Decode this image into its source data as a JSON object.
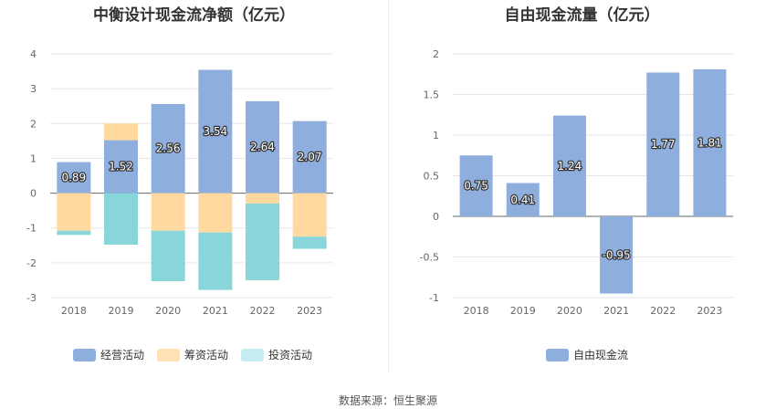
{
  "chart_data": [
    {
      "type": "bar",
      "stacked": true,
      "title": "中衡设计现金流净额（亿元）",
      "categories": [
        "2018",
        "2019",
        "2020",
        "2021",
        "2022",
        "2023"
      ],
      "yticks": [
        "4",
        "3",
        "2",
        "1",
        "0",
        "-1",
        "-2",
        "-3"
      ],
      "ylim": [
        -3,
        4
      ],
      "grid": true,
      "legend_position": "bottom",
      "series": [
        {
          "name": "经营活动",
          "color": "#8eaedd",
          "values": [
            0.89,
            1.52,
            2.56,
            3.54,
            2.64,
            2.07
          ],
          "labels": [
            "0.89",
            "1.52",
            "2.56",
            "3.54",
            "2.64",
            "2.07"
          ]
        },
        {
          "name": "筹资活动",
          "color": "#ffd9a0",
          "values": [
            -1.08,
            0.48,
            -1.08,
            -1.13,
            -0.3,
            -1.25
          ]
        },
        {
          "name": "投资活动",
          "color": "#89d6da",
          "values": [
            -0.12,
            -1.48,
            -1.45,
            -1.65,
            -2.2,
            -0.35
          ]
        }
      ]
    },
    {
      "type": "bar",
      "title": "自由现金流量（亿元）",
      "categories": [
        "2018",
        "2019",
        "2020",
        "2021",
        "2022",
        "2023"
      ],
      "yticks": [
        "2",
        "1.5",
        "1",
        "0.5",
        "0",
        "-0.5",
        "-1"
      ],
      "ylim": [
        -1,
        2
      ],
      "grid": true,
      "legend_position": "bottom",
      "series": [
        {
          "name": "自由现金流",
          "color": "#8eaedd",
          "values": [
            0.75,
            0.41,
            1.24,
            -0.95,
            1.77,
            1.81
          ],
          "labels": [
            "0.75",
            "0.41",
            "1.24",
            "-0.95",
            "1.77",
            "1.81"
          ]
        }
      ]
    }
  ],
  "legend_left": [
    {
      "label": "经营活动",
      "color": "#8eaedd"
    },
    {
      "label": "筹资活动",
      "color": "#ffe1b5"
    },
    {
      "label": "投资活动",
      "color": "#c5ecee"
    }
  ],
  "legend_right": [
    {
      "label": "自由现金流",
      "color": "#8eaedd"
    }
  ],
  "source": "数据来源：恒生聚源"
}
